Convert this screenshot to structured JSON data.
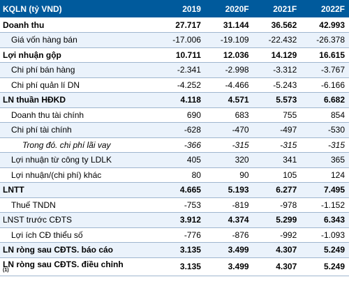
{
  "header": {
    "label": "KQLN (tỷ VND)",
    "years": [
      "2019",
      "2020F",
      "2021F",
      "2022F"
    ]
  },
  "rows": [
    {
      "label": "Doanh thu",
      "values": [
        "27.717",
        "31.144",
        "36.562",
        "42.993"
      ]
    },
    {
      "label": "Giá vốn hàng bán",
      "values": [
        "-17.006",
        "-19.109",
        "-22.432",
        "-26.378"
      ]
    },
    {
      "label": "Lợi nhuận gộp",
      "values": [
        "10.711",
        "12.036",
        "14.129",
        "16.615"
      ]
    },
    {
      "label": "Chi phí bán hàng",
      "values": [
        "-2.341",
        "-2.998",
        "-3.312",
        "-3.767"
      ]
    },
    {
      "label": "Chi phí quản lí DN",
      "values": [
        "-4.252",
        "-4.466",
        "-5.243",
        "-6.166"
      ]
    },
    {
      "label": "LN thuần HĐKD",
      "values": [
        "4.118",
        "4.571",
        "5.573",
        "6.682"
      ]
    },
    {
      "label": "Doanh thu tài chính",
      "values": [
        "690",
        "683",
        "755",
        "854"
      ]
    },
    {
      "label": "Chi phí tài chính",
      "values": [
        "-628",
        "-470",
        "-497",
        "-530"
      ]
    },
    {
      "label": "Trong đó. chi phí lãi vay",
      "values": [
        "-366",
        "-315",
        "-315",
        "-315"
      ]
    },
    {
      "label": "Lợi nhuận từ công ty LDLK",
      "values": [
        "405",
        "320",
        "341",
        "365"
      ]
    },
    {
      "label": "Lợi nhuận/(chi phí) khác",
      "values": [
        "80",
        "90",
        "105",
        "124"
      ]
    },
    {
      "label": "LNTT",
      "values": [
        "4.665",
        "5.193",
        "6.277",
        "7.495"
      ]
    },
    {
      "label": "Thuế TNDN",
      "values": [
        "-753",
        "-819",
        "-978",
        "-1.152"
      ]
    },
    {
      "label": "LNST trước CĐTS",
      "values": [
        "3.912",
        "4.374",
        "5.299",
        "6.343"
      ]
    },
    {
      "label": "Lợi ích CĐ thiểu số",
      "values": [
        "-776",
        "-876",
        "-992",
        "-1.093"
      ]
    },
    {
      "label": "LN ròng sau CĐTS. báo cáo",
      "values": [
        "3.135",
        "3.499",
        "4.307",
        "5.249"
      ]
    },
    {
      "label": "LN ròng sau CĐTS. điều chỉnh",
      "note": "(1)",
      "values": [
        "3.135",
        "3.499",
        "4.307",
        "5.249"
      ]
    }
  ]
}
